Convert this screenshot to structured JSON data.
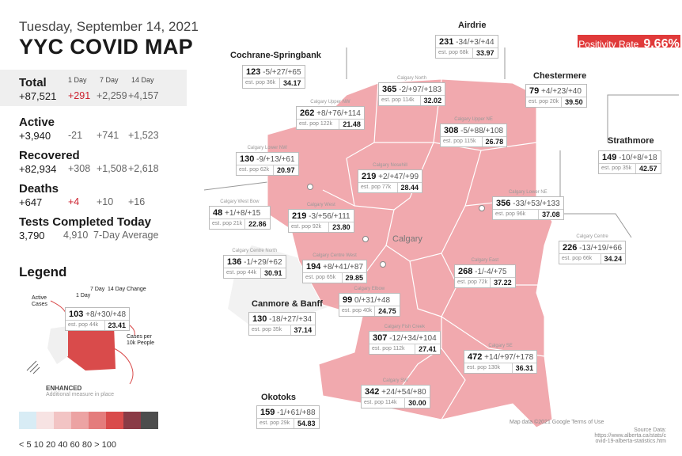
{
  "header": {
    "date": "Tuesday, September 14, 2021",
    "title": "YYC COVID MAP"
  },
  "positivity": {
    "label": "Positivity Rate",
    "value": "9.66%"
  },
  "stats": {
    "col_headers": [
      "1 Day",
      "7 Day",
      "14 Day"
    ],
    "total": {
      "label": "Total",
      "value": "+87,521",
      "d1": "+291",
      "d7": "+2,259",
      "d14": "+4,157"
    },
    "active": {
      "label": "Active",
      "value": "+3,940",
      "d1": "-21",
      "d7": "+741",
      "d14": "+1,523"
    },
    "recovered": {
      "label": "Recovered",
      "value": "+82,934",
      "d1": "+308",
      "d7": "+1,508",
      "d14": "+2,618"
    },
    "deaths": {
      "label": "Deaths",
      "value": "+647",
      "d1": "+4",
      "d7": "+10",
      "d14": "+16"
    },
    "tests": {
      "label": "Tests Completed Today",
      "value": "3,790",
      "avg": "4,910",
      "avg_label": "7-Day Average"
    }
  },
  "legend": {
    "title": "Legend",
    "labels": {
      "active": "Active Cases",
      "day1": "1 Day",
      "day7": "7 Day",
      "change": "14 Day Change",
      "per10k": "Cases per 10k People"
    },
    "sample": {
      "cases": "103",
      "changes": "+8/+30/+48",
      "pop": "est. pop 44k",
      "rate": "23.41"
    },
    "enhanced": "ENHANCED",
    "enhanced_sub": "Additional measure in place",
    "scale_colors": [
      "#d8ecf5",
      "#f7e3e3",
      "#f2c4c4",
      "#eca3a3",
      "#e47c7c",
      "#d94b4b",
      "#8a3b46",
      "#4d4d4d"
    ],
    "scale_labels": "< 5   10   20   40   60   80 > 100"
  },
  "cities": {
    "airdrie": "Airdrie",
    "cochrane": "Cochrane-Springbank",
    "chestermere": "Chestermere",
    "strathmore": "Strathmore",
    "canmore": "Canmore & Banff",
    "okotoks": "Okotoks",
    "calgary": "Calgary"
  },
  "regions": [
    {
      "key": "airdrie",
      "name": "",
      "cases": "231",
      "chg": "-34/+3/+44",
      "pop": "est. pop 68k",
      "rate": "33.97"
    },
    {
      "key": "cochrane",
      "name": "",
      "cases": "123",
      "chg": "-5/+27/+65",
      "pop": "est. pop 36k",
      "rate": "34.17"
    },
    {
      "key": "north",
      "name": "Calgary North",
      "cases": "365",
      "chg": "-2/+97/+183",
      "pop": "est. pop 114k",
      "rate": "32.02"
    },
    {
      "key": "chestermere",
      "name": "",
      "cases": "79",
      "chg": "+4/+23/+40",
      "pop": "est. pop 20k",
      "rate": "39.50"
    },
    {
      "key": "uppernw",
      "name": "Calgary Upper NW",
      "cases": "262",
      "chg": "+8/+76/+114",
      "pop": "est. pop 122k",
      "rate": "21.48"
    },
    {
      "key": "upperne",
      "name": "Calgary Upper NE",
      "cases": "308",
      "chg": "-5/+88/+108",
      "pop": "est. pop 115k",
      "rate": "26.78"
    },
    {
      "key": "strathmore",
      "name": "",
      "cases": "149",
      "chg": "-10/+8/+18",
      "pop": "est. pop 35k",
      "rate": "42.57"
    },
    {
      "key": "lowernw",
      "name": "Calgary Lower NW",
      "cases": "130",
      "chg": "-9/+13/+61",
      "pop": "est. pop 62k",
      "rate": "20.97"
    },
    {
      "key": "nosehill",
      "name": "Calgary Nosehill",
      "cases": "219",
      "chg": "+2/+47/+99",
      "pop": "est. pop 77k",
      "rate": "28.44"
    },
    {
      "key": "westbow",
      "name": "Calgary West Bow",
      "cases": "48",
      "chg": "+1/+8/+15",
      "pop": "est. pop 21k",
      "rate": "22.86"
    },
    {
      "key": "west",
      "name": "Calgary West",
      "cases": "219",
      "chg": "-3/+56/+111",
      "pop": "est. pop 92k",
      "rate": "23.80"
    },
    {
      "key": "lowerne",
      "name": "Calgary Lower NE",
      "cases": "356",
      "chg": "-33/+53/+133",
      "pop": "est. pop 96k",
      "rate": "37.08"
    },
    {
      "key": "centrenorth",
      "name": "Calgary Centre North",
      "cases": "136",
      "chg": "-1/+29/+62",
      "pop": "est. pop 44k",
      "rate": "30.91"
    },
    {
      "key": "centrewest",
      "name": "Calgary Centre West",
      "cases": "194",
      "chg": "+8/+41/+87",
      "pop": "est. pop 65k",
      "rate": "29.85"
    },
    {
      "key": "centre",
      "name": "Calgary Centre",
      "cases": "226",
      "chg": "-13/+19/+66",
      "pop": "est. pop 66k",
      "rate": "34.24"
    },
    {
      "key": "east",
      "name": "Calgary East",
      "cases": "268",
      "chg": "-1/-4/+75",
      "pop": "est. pop 72k",
      "rate": "37.22"
    },
    {
      "key": "elbow",
      "name": "Calgary Elbow",
      "cases": "99",
      "chg": "0/+31/+48",
      "pop": "est. pop 40k",
      "rate": "24.75"
    },
    {
      "key": "canmore",
      "name": "",
      "cases": "130",
      "chg": "-18/+27/+34",
      "pop": "est. pop 35k",
      "rate": "37.14"
    },
    {
      "key": "fishcreek",
      "name": "Calgary Fish Creek",
      "cases": "307",
      "chg": "-12/+34/+104",
      "pop": "est. pop 112k",
      "rate": "27.41"
    },
    {
      "key": "se",
      "name": "Calgary SE",
      "cases": "472",
      "chg": "+14/+97/+178",
      "pop": "est. pop 130k",
      "rate": "36.31"
    },
    {
      "key": "sw",
      "name": "Calgary SW",
      "cases": "342",
      "chg": "+24/+54/+80",
      "pop": "est. pop 114k",
      "rate": "30.00"
    },
    {
      "key": "okotoks",
      "name": "",
      "cases": "159",
      "chg": "-1/+61/+88",
      "pop": "est. pop 29k",
      "rate": "54.83"
    }
  ],
  "source": {
    "label": "Source Data:",
    "url": "https://www.alberta.ca/stats/covid-19-alberta-statistics.htm"
  },
  "map_attr": "Map data ©2021 Google   Terms of Use"
}
